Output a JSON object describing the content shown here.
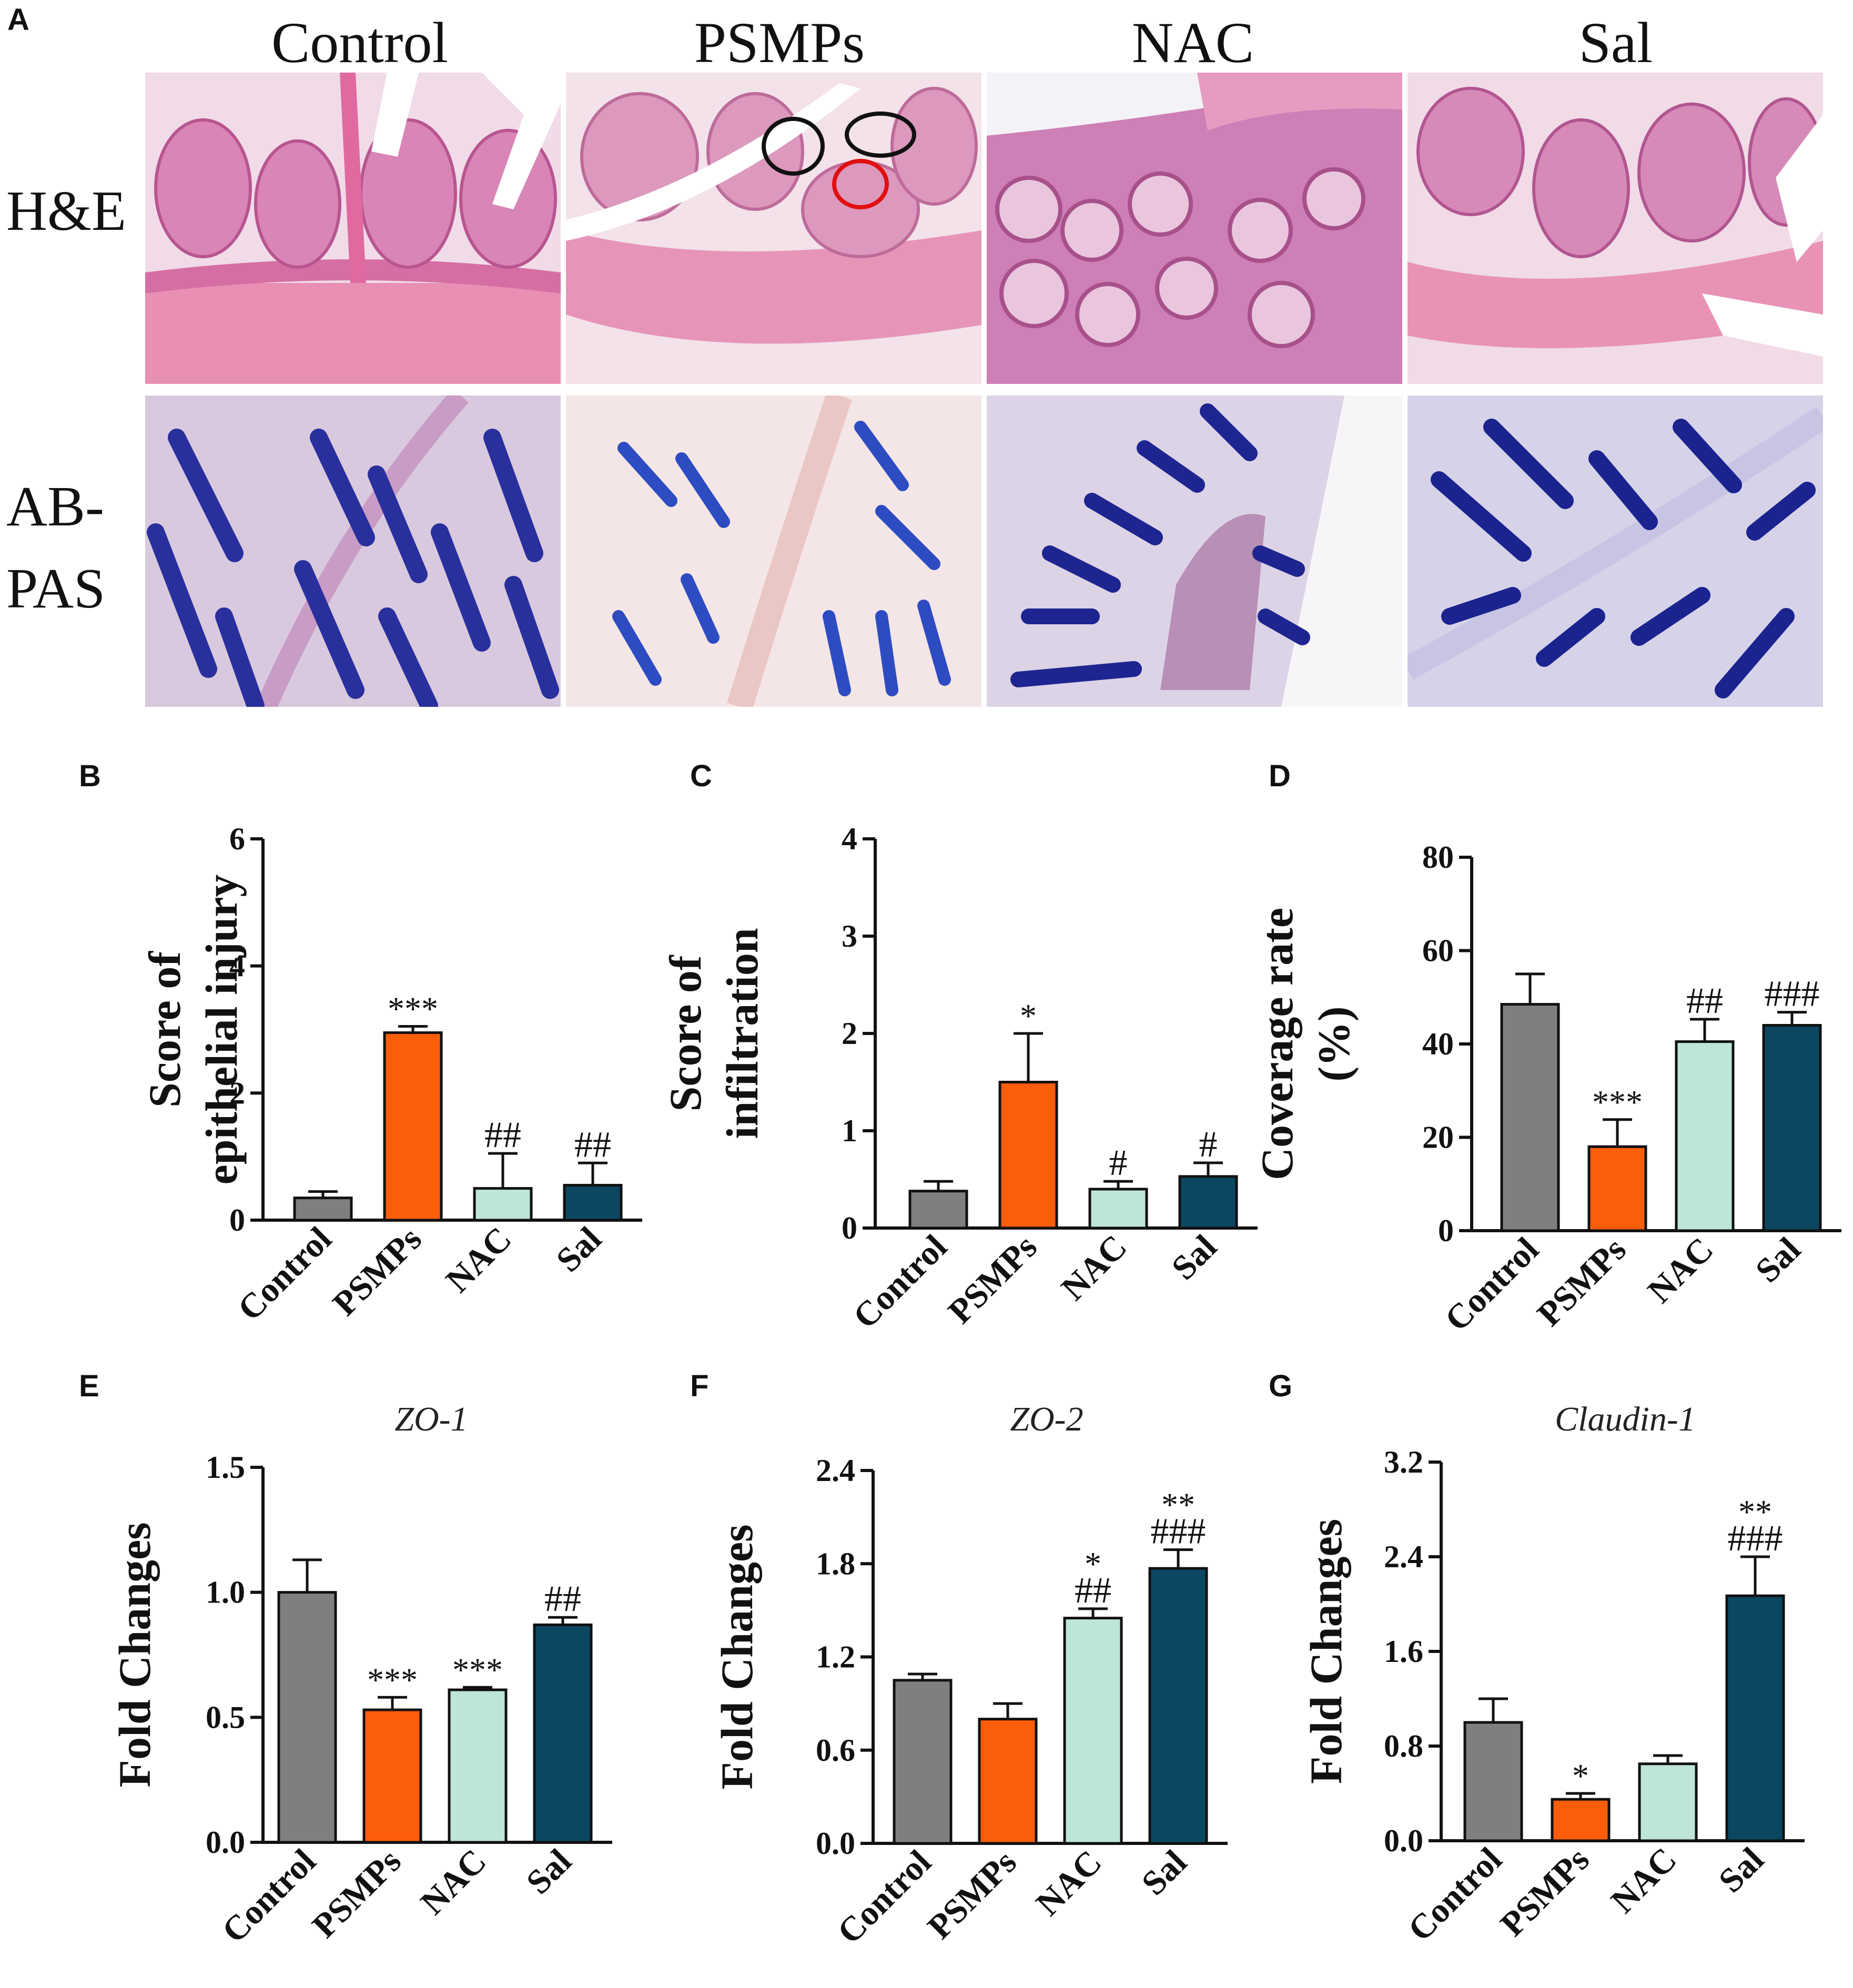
{
  "panel_a": {
    "letter": "A",
    "columns": [
      "Control",
      "PSMPs",
      "NAC",
      "Sal"
    ],
    "rows": [
      {
        "key": "he",
        "label": "H&E"
      },
      {
        "key": "abpas",
        "label": "AB-\nPAS",
        "label_line1": "AB-",
        "label_line2": "PAS"
      }
    ],
    "colors": {
      "he_tissue": "#d985b6",
      "he_muscle": "#e88fb3",
      "abpas_bg": "#e6dbe8",
      "abpas_goblet": "#2a2f9e",
      "circle_black": "#111111",
      "circle_red": "#e01010"
    }
  },
  "series_colors": {
    "Control": "#7f7f7f",
    "PSMPs": "#fb5d0a",
    "NAC": "#bde5da",
    "Sal": "#0b4761"
  },
  "chart_data": [
    {
      "id": "B",
      "letter": "B",
      "type": "bar",
      "categories": [
        "Control",
        "PSMPs",
        "NAC",
        "Sal"
      ],
      "values": [
        0.35,
        2.95,
        0.5,
        0.55
      ],
      "errors": [
        0.1,
        0.1,
        0.55,
        0.35
      ],
      "annotations": [
        [
          "",
          ""
        ],
        [
          "***",
          ""
        ],
        [
          "##",
          ""
        ],
        [
          "##",
          ""
        ]
      ],
      "ylabel_lines": [
        "Score of",
        "epithelial injury"
      ],
      "title": "",
      "ylim": [
        0,
        6
      ],
      "yticks": [
        "0",
        "2",
        "4",
        "6"
      ],
      "tick_values": [
        0,
        2,
        4,
        6
      ]
    },
    {
      "id": "C",
      "letter": "C",
      "type": "bar",
      "categories": [
        "Control",
        "PSMPs",
        "NAC",
        "Sal"
      ],
      "values": [
        0.38,
        1.5,
        0.4,
        0.53
      ],
      "errors": [
        0.1,
        0.5,
        0.08,
        0.14
      ],
      "annotations": [
        [
          "",
          ""
        ],
        [
          "*",
          ""
        ],
        [
          "#",
          ""
        ],
        [
          "#",
          ""
        ]
      ],
      "ylabel_lines": [
        "Score of",
        "infiltration"
      ],
      "title": "",
      "ylim": [
        0,
        4
      ],
      "yticks": [
        "0",
        "1",
        "2",
        "3",
        "4"
      ],
      "tick_values": [
        0,
        1,
        2,
        3,
        4
      ]
    },
    {
      "id": "D",
      "letter": "D",
      "type": "bar",
      "categories": [
        "Control",
        "PSMPs",
        "NAC",
        "Sal"
      ],
      "values": [
        48.5,
        18,
        40.5,
        44
      ],
      "errors": [
        6.5,
        5.8,
        4.8,
        2.8
      ],
      "annotations": [
        [
          "",
          ""
        ],
        [
          "***",
          ""
        ],
        [
          "##",
          ""
        ],
        [
          "###",
          ""
        ]
      ],
      "ylabel_lines": [
        "Coverage rate",
        "(%)"
      ],
      "title": "",
      "ylim": [
        0,
        80
      ],
      "yticks": [
        "0",
        "20",
        "40",
        "60",
        "80"
      ],
      "tick_values": [
        0,
        20,
        40,
        60,
        80
      ]
    },
    {
      "id": "E",
      "letter": "E",
      "type": "bar",
      "categories": [
        "Control",
        "PSMPs",
        "NAC",
        "Sal"
      ],
      "values": [
        1.0,
        0.53,
        0.61,
        0.87
      ],
      "errors": [
        0.13,
        0.05,
        0.01,
        0.03
      ],
      "annotations": [
        [
          "",
          ""
        ],
        [
          "***",
          ""
        ],
        [
          "***",
          ""
        ],
        [
          "##",
          ""
        ]
      ],
      "ylabel_lines": [
        "Fold Changes"
      ],
      "title": "ZO-1",
      "ylim": [
        0,
        1.5
      ],
      "yticks": [
        "0.0",
        "0.5",
        "1.0",
        "1.5"
      ],
      "tick_values": [
        0,
        0.5,
        1.0,
        1.5
      ]
    },
    {
      "id": "F",
      "letter": "F",
      "type": "bar",
      "categories": [
        "Control",
        "PSMPs",
        "NAC",
        "Sal"
      ],
      "values": [
        1.05,
        0.8,
        1.45,
        1.77
      ],
      "errors": [
        0.04,
        0.1,
        0.06,
        0.12
      ],
      "annotations": [
        [
          "",
          ""
        ],
        [
          "",
          ""
        ],
        [
          "*",
          "##"
        ],
        [
          "**",
          "###"
        ]
      ],
      "ylabel_lines": [
        "Fold Changes"
      ],
      "title": "ZO-2",
      "ylim": [
        0,
        2.4
      ],
      "yticks": [
        "0.0",
        "0.6",
        "1.2",
        "1.8",
        "2.4"
      ],
      "tick_values": [
        0,
        0.6,
        1.2,
        1.8,
        2.4
      ]
    },
    {
      "id": "G",
      "letter": "G",
      "type": "bar",
      "categories": [
        "Control",
        "PSMPs",
        "NAC",
        "Sal"
      ],
      "values": [
        1.0,
        0.35,
        0.65,
        2.07
      ],
      "errors": [
        0.2,
        0.05,
        0.07,
        0.33
      ],
      "annotations": [
        [
          "",
          ""
        ],
        [
          "*",
          ""
        ],
        [
          "",
          ""
        ],
        [
          "**",
          "###"
        ]
      ],
      "ylabel_lines": [
        "Fold Changes"
      ],
      "title": "Claudin-1",
      "ylim": [
        0,
        3.2
      ],
      "yticks": [
        "0.0",
        "0.8",
        "1.6",
        "2.4",
        "3.2"
      ],
      "tick_values": [
        0,
        0.8,
        1.6,
        2.4,
        3.2
      ]
    }
  ]
}
